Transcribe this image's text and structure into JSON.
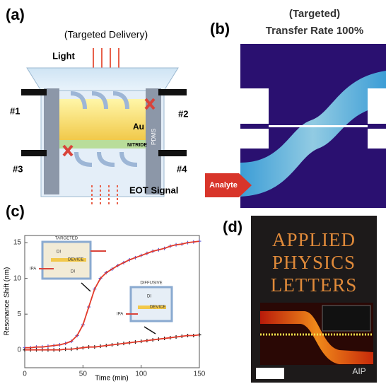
{
  "panel_a": {
    "letter": "(a)",
    "title": "(Targeted Delivery)",
    "light": "Light",
    "ports": [
      "#1",
      "#2",
      "#3",
      "#4"
    ],
    "au": "Au",
    "nitride": "NITRIDE",
    "pdms": "PDMS",
    "signal": "EOT Signal"
  },
  "panel_b": {
    "letter": "(b)",
    "title": "(Targeted)",
    "subtitle": "Transfer Rate 100%",
    "analyte": "Analyte"
  },
  "panel_d": {
    "letter": "(d)",
    "cover_title": [
      "APPLIED",
      "PHYSICS",
      "LETTERS"
    ],
    "publisher": "AIP"
  },
  "insets": [
    {
      "labels": [
        "DI",
        "DEVICE",
        "IPA",
        "DI"
      ]
    },
    {
      "labels": [
        "DI",
        "DEVICE",
        "IPA"
      ]
    }
  ],
  "chart_data": {
    "type": "line",
    "letter": "(c)",
    "x_label": "Time (min)",
    "y_label": "Resonance Shift (nm)",
    "x": [
      0,
      5,
      10,
      15,
      20,
      25,
      30,
      35,
      40,
      45,
      50,
      55,
      60,
      65,
      70,
      75,
      80,
      85,
      90,
      95,
      100,
      105,
      110,
      115,
      120,
      125,
      130,
      135,
      140,
      145,
      150
    ],
    "series": [
      {
        "name": "TARGETED",
        "color": "#5656d8",
        "values": [
          0.3,
          0.3,
          0.4,
          0.4,
          0.5,
          0.6,
          0.7,
          0.9,
          1.2,
          2,
          3.5,
          6,
          8.5,
          10,
          10.8,
          11.3,
          11.8,
          12.2,
          12.6,
          12.9,
          13.2,
          13.5,
          13.8,
          14,
          14.2,
          14.5,
          14.7,
          14.8,
          15,
          15.1,
          15.2
        ]
      },
      {
        "name": "DIFFUSIVE",
        "color": "#111111",
        "values": [
          0,
          0,
          0,
          0,
          0,
          0,
          0,
          0.1,
          0.1,
          0.2,
          0.3,
          0.4,
          0.4,
          0.5,
          0.6,
          0.7,
          0.8,
          0.9,
          1,
          1.1,
          1.2,
          1.3,
          1.4,
          1.5,
          1.6,
          1.7,
          1.8,
          1.9,
          2,
          2,
          2.1
        ]
      }
    ],
    "fit_color": "#e23a2a",
    "xlim": [
      0,
      150
    ],
    "xticks": [
      0,
      50,
      100,
      150
    ],
    "ylim": [
      -2.5,
      16
    ],
    "yticks": [
      0,
      5,
      10,
      15
    ]
  }
}
